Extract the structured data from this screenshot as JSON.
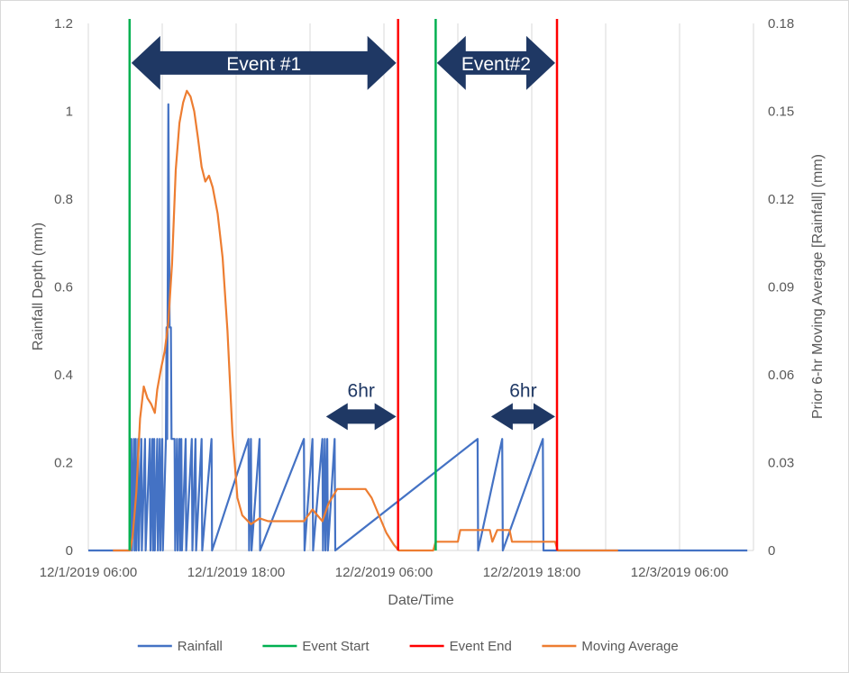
{
  "chart_data": {
    "type": "line",
    "title": "",
    "xlabel": "Date/Time",
    "ylabel_left": "Rainfall Depth (mm)",
    "ylabel_right": "Prior 6-hr Moving Average [Rainfall] (mm)",
    "x_unit": "hours since 12/1/2019 00:00",
    "xlim_hours": [
      6,
      39.5
    ],
    "ylim_left": [
      0,
      1.2
    ],
    "ylim_right": [
      0,
      0.18
    ],
    "x_ticks": [
      {
        "hour": 6,
        "label": "12/1/2019 06:00"
      },
      {
        "hour": 12,
        "label": ""
      },
      {
        "hour": 18,
        "label": "12/1/2019 18:00"
      },
      {
        "hour": 24,
        "label": ""
      },
      {
        "hour": 30,
        "label": "12/2/2019 06:00"
      },
      {
        "hour": 36,
        "label": ""
      },
      {
        "hour": 42,
        "label": "12/2/2019 18:00"
      },
      {
        "hour": 48,
        "label": ""
      },
      {
        "hour": 54,
        "label": "12/3/2019 06:00"
      },
      {
        "hour": 60,
        "label": ""
      }
    ],
    "y_ticks_left": [
      {
        "value": 0,
        "label": "0"
      },
      {
        "value": 0.2,
        "label": "0.2"
      },
      {
        "value": 0.4,
        "label": "0.4"
      },
      {
        "value": 0.6,
        "label": "0.6"
      },
      {
        "value": 0.8,
        "label": "0.8"
      },
      {
        "value": 1.0,
        "label": "1"
      },
      {
        "value": 1.2,
        "label": "1.2"
      }
    ],
    "y_ticks_right": [
      {
        "value": 0,
        "label": "0"
      },
      {
        "value": 0.03,
        "label": "0.03"
      },
      {
        "value": 0.06,
        "label": "0.06"
      },
      {
        "value": 0.09,
        "label": "0.09"
      },
      {
        "value": 0.12,
        "label": "0.12"
      },
      {
        "value": 0.15,
        "label": "0.15"
      },
      {
        "value": 0.18,
        "label": "0.18"
      }
    ],
    "series": [
      {
        "name": "Rainfall",
        "axis": "left",
        "color": "#4472c4",
        "kind": "spikes",
        "baseline_range": [
          6,
          59.5
        ],
        "points": [
          [
            9.4,
            0.0
          ],
          [
            9.5,
            0.254
          ],
          [
            9.55,
            0.0
          ],
          [
            9.7,
            0.254
          ],
          [
            9.75,
            0.0
          ],
          [
            9.85,
            0.254
          ],
          [
            9.9,
            0.0
          ],
          [
            10.05,
            0.254
          ],
          [
            10.1,
            0.0
          ],
          [
            10.3,
            0.254
          ],
          [
            10.35,
            0.0
          ],
          [
            10.6,
            0.254
          ],
          [
            10.65,
            0.0
          ],
          [
            11.0,
            0.254
          ],
          [
            11.05,
            0.0
          ],
          [
            11.2,
            0.254
          ],
          [
            11.25,
            0.0
          ],
          [
            11.35,
            0.254
          ],
          [
            11.4,
            0.0
          ],
          [
            11.6,
            0.254
          ],
          [
            11.65,
            0.0
          ],
          [
            11.8,
            0.254
          ],
          [
            11.85,
            0.0
          ],
          [
            12.0,
            0.254
          ],
          [
            12.05,
            0.0
          ],
          [
            12.3,
            0.254
          ],
          [
            12.35,
            0.508
          ],
          [
            12.4,
            0.254
          ],
          [
            12.5,
            1.016
          ],
          [
            12.6,
            0.508
          ],
          [
            12.7,
            0.508
          ],
          [
            12.75,
            0.254
          ],
          [
            13.0,
            0.254
          ],
          [
            13.05,
            0.0
          ],
          [
            13.2,
            0.254
          ],
          [
            13.25,
            0.0
          ],
          [
            13.4,
            0.254
          ],
          [
            13.45,
            0.0
          ],
          [
            13.55,
            0.254
          ],
          [
            13.6,
            0.0
          ],
          [
            13.9,
            0.254
          ],
          [
            13.95,
            0.0
          ],
          [
            14.4,
            0.254
          ],
          [
            14.45,
            0.0
          ],
          [
            14.7,
            0.254
          ],
          [
            14.75,
            0.0
          ],
          [
            15.2,
            0.254
          ],
          [
            15.25,
            0.0
          ],
          [
            16.0,
            0.254
          ],
          [
            16.05,
            0.0
          ],
          [
            19.0,
            0.254
          ],
          [
            19.05,
            0.0
          ],
          [
            19.2,
            0.254
          ],
          [
            19.25,
            0.0
          ],
          [
            19.9,
            0.254
          ],
          [
            19.95,
            0.0
          ],
          [
            23.5,
            0.254
          ],
          [
            23.55,
            0.0
          ],
          [
            24.2,
            0.254
          ],
          [
            24.25,
            0.0
          ],
          [
            25.0,
            0.254
          ],
          [
            25.05,
            0.0
          ],
          [
            25.2,
            0.254
          ],
          [
            25.25,
            0.0
          ],
          [
            25.4,
            0.254
          ],
          [
            25.45,
            0.0
          ],
          [
            26.0,
            0.254
          ],
          [
            26.05,
            0.0
          ],
          [
            37.6,
            0.254
          ],
          [
            37.65,
            0.0
          ],
          [
            39.6,
            0.254
          ],
          [
            39.65,
            0.0
          ],
          [
            42.9,
            0.254
          ],
          [
            42.95,
            0.0
          ]
        ]
      },
      {
        "name": "Moving Average",
        "axis": "right",
        "color": "#ed7d31",
        "kind": "line",
        "points": [
          [
            8.0,
            0.0
          ],
          [
            9.4,
            0.0
          ],
          [
            9.6,
            0.005
          ],
          [
            9.9,
            0.02
          ],
          [
            10.2,
            0.045
          ],
          [
            10.5,
            0.056
          ],
          [
            10.8,
            0.052
          ],
          [
            11.1,
            0.05
          ],
          [
            11.4,
            0.047
          ],
          [
            11.6,
            0.055
          ],
          [
            11.9,
            0.062
          ],
          [
            12.2,
            0.068
          ],
          [
            12.5,
            0.078
          ],
          [
            12.8,
            0.098
          ],
          [
            13.1,
            0.13
          ],
          [
            13.4,
            0.146
          ],
          [
            13.7,
            0.153
          ],
          [
            14.0,
            0.157
          ],
          [
            14.3,
            0.155
          ],
          [
            14.6,
            0.15
          ],
          [
            14.9,
            0.141
          ],
          [
            15.2,
            0.131
          ],
          [
            15.5,
            0.126
          ],
          [
            15.8,
            0.128
          ],
          [
            16.1,
            0.124
          ],
          [
            16.5,
            0.115
          ],
          [
            16.9,
            0.1
          ],
          [
            17.3,
            0.075
          ],
          [
            17.7,
            0.04
          ],
          [
            18.1,
            0.018
          ],
          [
            18.5,
            0.012
          ],
          [
            19.2,
            0.009
          ],
          [
            19.9,
            0.011
          ],
          [
            20.6,
            0.01
          ],
          [
            22.0,
            0.01
          ],
          [
            23.5,
            0.01
          ],
          [
            24.2,
            0.014
          ],
          [
            25.0,
            0.01
          ],
          [
            25.5,
            0.016
          ],
          [
            26.2,
            0.021
          ],
          [
            27.0,
            0.021
          ],
          [
            28.5,
            0.021
          ],
          [
            29.0,
            0.018
          ],
          [
            29.6,
            0.012
          ],
          [
            30.2,
            0.006
          ],
          [
            30.8,
            0.002
          ],
          [
            31.2,
            0.0
          ],
          [
            34.0,
            0.0
          ],
          [
            34.2,
            0.003
          ],
          [
            36.0,
            0.003
          ],
          [
            36.2,
            0.007
          ],
          [
            38.6,
            0.007
          ],
          [
            38.8,
            0.003
          ],
          [
            39.2,
            0.007
          ],
          [
            40.2,
            0.007
          ],
          [
            40.4,
            0.003
          ],
          [
            43.9,
            0.003
          ],
          [
            44.1,
            0.0
          ],
          [
            49.0,
            0.0
          ]
        ]
      },
      {
        "name": "Event Start",
        "axis": "left",
        "color": "#00b050",
        "kind": "vline",
        "hours": [
          9.35,
          34.2
        ]
      },
      {
        "name": "Event End",
        "axis": "left",
        "color": "#ff0000",
        "kind": "vline",
        "hours": [
          31.15,
          44.05
        ]
      }
    ],
    "legend": {
      "placement": "bottom",
      "entries": [
        "Rainfall",
        "Event Start",
        "Event End",
        "Moving Average"
      ]
    },
    "annotations": [
      {
        "type": "double-arrow",
        "label": "Event #1",
        "x_start": 9.5,
        "x_end": 31.0,
        "y_left": 1.11,
        "color": "#1f3864"
      },
      {
        "type": "double-arrow",
        "label": "Event#2",
        "x_start": 34.3,
        "x_end": 43.9,
        "y_left": 1.11,
        "color": "#1f3864"
      },
      {
        "type": "double-arrow",
        "label": "6hr",
        "x_start": 25.3,
        "x_end": 31.0,
        "y_left": 0.305,
        "color": "#1f3864"
      },
      {
        "type": "double-arrow",
        "label": "6hr",
        "x_start": 38.7,
        "x_end": 43.9,
        "y_left": 0.305,
        "color": "#1f3864"
      }
    ],
    "grid": {
      "vertical": true,
      "horizontal": false
    }
  }
}
